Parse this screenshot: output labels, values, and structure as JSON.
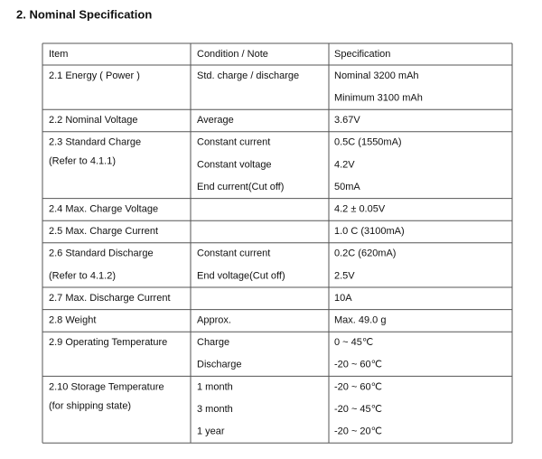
{
  "header": {
    "title": "2. Nominal Specification"
  },
  "table": {
    "columns": [
      "Item",
      "Condition / Note",
      "Specification"
    ],
    "rows": [
      {
        "item": [
          "2.1 Energy ( Power )"
        ],
        "condition": [
          "Std. charge / discharge"
        ],
        "spec": [
          "Nominal 3200 mAh",
          "Minimum 3100 mAh"
        ]
      },
      {
        "item": [
          "2.2 Nominal Voltage"
        ],
        "condition": [
          "Average"
        ],
        "spec": [
          "3.67V"
        ]
      },
      {
        "item": [
          "2.3 Standard Charge",
          "(Refer to 4.1.1)"
        ],
        "condition": [
          "Constant current",
          "Constant voltage",
          "End current(Cut off)"
        ],
        "spec": [
          "0.5C (1550mA)",
          "4.2V",
          "50mA"
        ]
      },
      {
        "item": [
          "2.4 Max. Charge Voltage"
        ],
        "condition": [],
        "spec": [
          "4.2 ± 0.05V"
        ]
      },
      {
        "item": [
          "2.5 Max. Charge Current"
        ],
        "condition": [],
        "spec": [
          "1.0 C (3100mA)"
        ]
      },
      {
        "item": [
          "2.6 Standard Discharge",
          "(Refer to 4.1.2)"
        ],
        "condition": [
          "Constant current",
          "End voltage(Cut off)"
        ],
        "spec": [
          "0.2C (620mA)",
          "2.5V"
        ]
      },
      {
        "item": [
          "2.7 Max. Discharge Current"
        ],
        "condition": [],
        "spec": [
          "10A"
        ]
      },
      {
        "item": [
          "2.8 Weight"
        ],
        "condition": [
          "Approx."
        ],
        "spec": [
          "Max. 49.0 g"
        ]
      },
      {
        "item": [
          "2.9 Operating Temperature"
        ],
        "condition": [
          "Charge",
          "Discharge"
        ],
        "spec": [
          "0 ~ 45℃",
          "-20 ~ 60℃"
        ]
      },
      {
        "item": [
          "2.10 Storage Temperature",
          "(for shipping state)"
        ],
        "condition": [
          "1 month",
          "3 month",
          "1 year"
        ],
        "spec": [
          "-20 ~ 60℃",
          "-20 ~ 45℃",
          "-20 ~ 20℃"
        ]
      }
    ]
  }
}
